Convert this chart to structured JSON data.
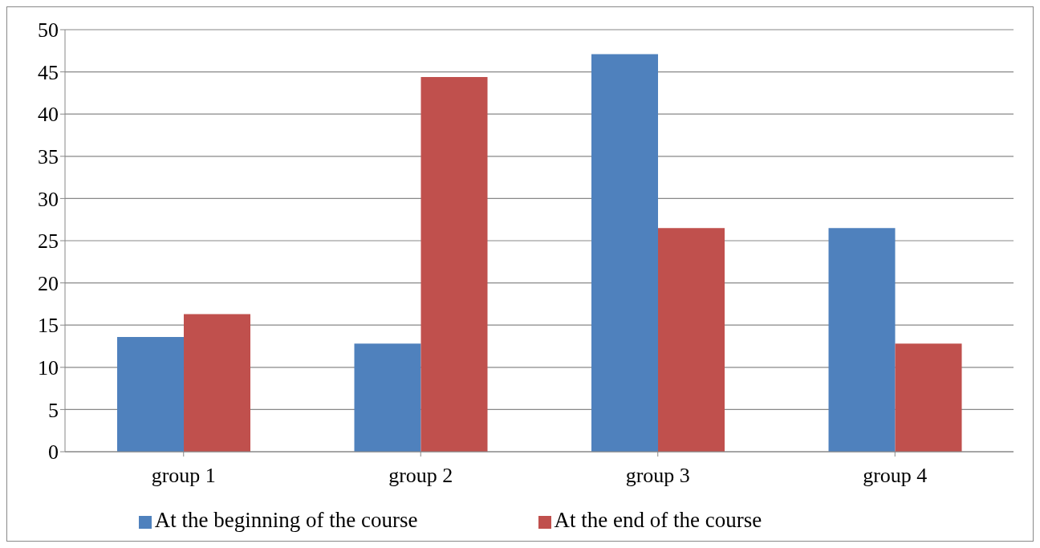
{
  "chart_data": {
    "type": "bar",
    "categories": [
      "group 1",
      "group 2",
      "group 3",
      "group 4"
    ],
    "series": [
      {
        "name": "At the beginning of the course",
        "color": "#4f81bd",
        "values": [
          13.6,
          12.8,
          47.1,
          26.5
        ]
      },
      {
        "name": "At the end of the course",
        "color": "#c0504d",
        "values": [
          16.3,
          44.4,
          26.5,
          12.8
        ]
      }
    ],
    "ylim": [
      0,
      50
    ],
    "yticks": [
      0,
      5,
      10,
      15,
      20,
      25,
      30,
      35,
      40,
      45,
      50
    ],
    "grid": "y",
    "legend": "bottom"
  }
}
